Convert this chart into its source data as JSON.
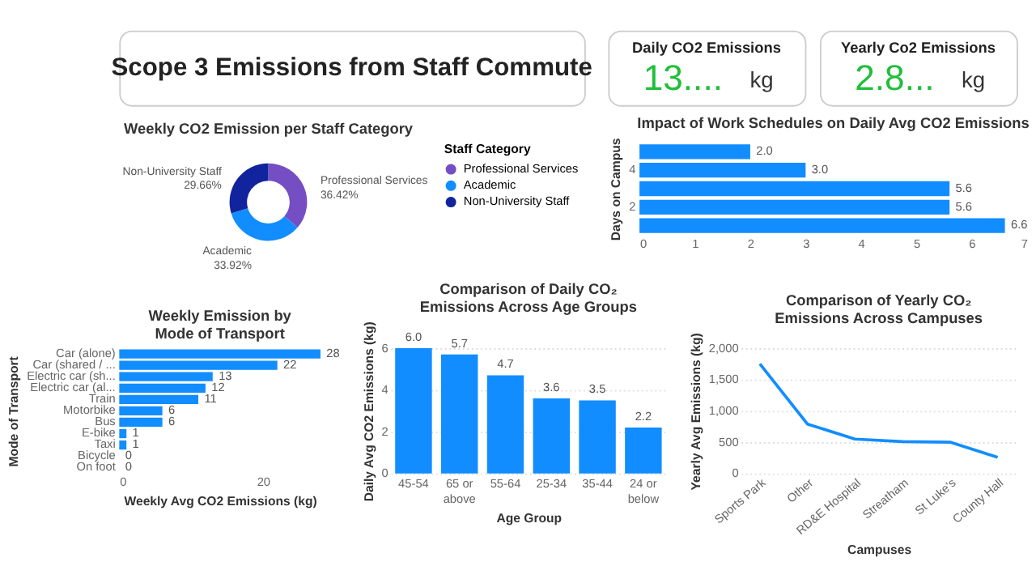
{
  "chart_data": [
    {
      "type": "other",
      "title": "Scope 3 Emissions from Staff Commute"
    },
    {
      "type": "other",
      "title": "Daily CO2 Emissions",
      "annotations": [
        "13....",
        "kg"
      ]
    },
    {
      "type": "other",
      "title": "Yearly Co2 Emissions",
      "annotations": [
        "2.8...",
        "kg"
      ]
    },
    {
      "type": "donut",
      "title": "Weekly CO2 Emission per Staff Category",
      "categories": [
        "Professional Services",
        "Academic",
        "Non-University Staff"
      ],
      "values": [
        36.42,
        33.92,
        29.66
      ],
      "colors": [
        "#744ec2",
        "#118dff",
        "#12239e"
      ],
      "value_labels": [
        "36.42%",
        "33.92%",
        "29.66%"
      ],
      "legend_title": "Staff Category",
      "legend": "right"
    },
    {
      "type": "bar",
      "orientation": "horizontal",
      "title": "Impact of Work Schedules on Daily Avg CO2 Emissions",
      "ylabel": "Days on Campus",
      "categories": [
        null,
        "4",
        null,
        "2",
        null
      ],
      "values": [
        2.0,
        3.0,
        5.6,
        5.6,
        6.6
      ],
      "value_labels": [
        "2.0",
        "3.0",
        "5.6",
        "5.6",
        "6.6"
      ],
      "color": "#118dff",
      "xlim": [
        0,
        7
      ],
      "xticks": [
        0,
        1,
        2,
        3,
        4,
        5,
        6,
        7
      ]
    },
    {
      "type": "bar",
      "orientation": "horizontal",
      "title": "Weekly Emission by Mode of Transport",
      "xlabel": "Weekly Avg CO2 Emissions (kg)",
      "ylabel": "Mode of Transport",
      "categories": [
        "Car (alone)",
        "Car (shared / ...",
        "Electric car (sh...",
        "Electric car (al...",
        "Train",
        "Motorbike",
        "Bus",
        "E-bike",
        "Taxi",
        "Bicycle",
        "On foot"
      ],
      "values": [
        28,
        22,
        13,
        12,
        11,
        6,
        6,
        1,
        1,
        0,
        0
      ],
      "data_labels": true,
      "color": "#118dff",
      "xlim": [
        0,
        28
      ],
      "xticks": [
        0,
        20
      ]
    },
    {
      "type": "bar",
      "title": "Comparison of Daily CO₂ Emissions Across Age Groups",
      "xlabel": "Age Group",
      "ylabel": "Daily Avg CO2 Emissions (kg)",
      "categories": [
        "45-54",
        "65 or above",
        "55-64",
        "25-34",
        "35-44",
        "24 or below"
      ],
      "values": [
        6.0,
        5.7,
        4.7,
        3.6,
        3.5,
        2.2
      ],
      "value_labels": [
        "6.0",
        "5.7",
        "4.7",
        "3.6",
        "3.5",
        "2.2"
      ],
      "color": "#118dff",
      "ylim": [
        0,
        6
      ],
      "yticks": [
        0,
        2,
        4,
        6
      ],
      "grid": "y"
    },
    {
      "type": "line",
      "title": "Comparison of Yearly CO₂ Emissions Across Campuses",
      "xlabel": "Campuses",
      "ylabel": "Yearly Avg Emissions (kg)",
      "categories": [
        "Sports Park",
        "Other",
        "RD&E Hospital",
        "Streatham",
        "St Luke's",
        "County Hall"
      ],
      "series": [
        {
          "color": "#118dff",
          "values": [
            1750,
            790,
            550,
            510,
            500,
            260
          ]
        }
      ],
      "ylim": [
        0,
        2000
      ],
      "yticks": [
        0,
        500,
        {
          "value": 1000,
          "label": "1,000"
        },
        {
          "value": 1500,
          "label": "1,500"
        },
        {
          "value": 2000,
          "label": "2,000"
        }
      ],
      "grid": "y",
      "marker": "none",
      "line_style": "solid"
    }
  ]
}
